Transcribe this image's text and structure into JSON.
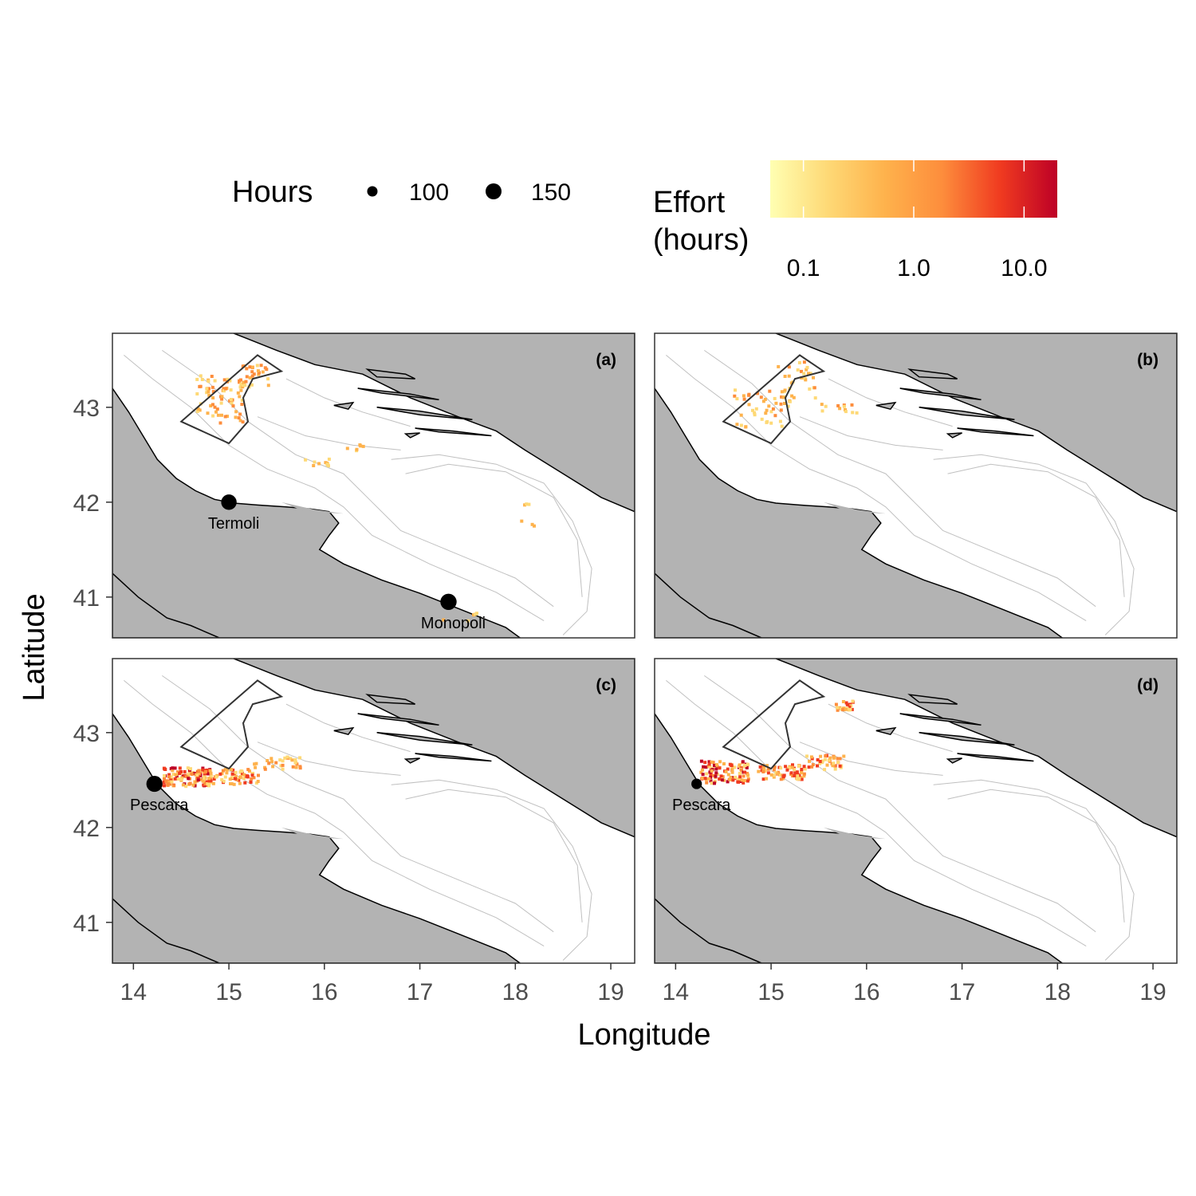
{
  "figure": {
    "x_axis_label": "Longitude",
    "y_axis_label": "Latitude",
    "x_ticks": [
      14,
      15,
      16,
      17,
      18,
      19
    ],
    "y_ticks": [
      41,
      42,
      43
    ],
    "xlim": [
      13.78,
      19.25
    ],
    "ylim": [
      40.57,
      43.78
    ]
  },
  "legend": {
    "hours": {
      "title": "Hours",
      "entries": [
        {
          "label": "100",
          "value": 100
        },
        {
          "label": "150",
          "value": 150
        }
      ]
    },
    "effort": {
      "title_line1": "Effort",
      "title_line2": "(hours)",
      "scale": "log10",
      "tick_labels": [
        "0.1",
        "1.0",
        "10.0"
      ],
      "tick_values": [
        0.1,
        1.0,
        10.0
      ],
      "range": [
        0.05,
        20
      ],
      "colors": [
        "#ffffb2",
        "#fed976",
        "#feb24c",
        "#fd8d3c",
        "#f03b20",
        "#bd0026"
      ]
    }
  },
  "colors": {
    "land": "#b3b3b3",
    "coast": "#000000",
    "bathymetry": "#c0c0c0",
    "closure_area": "#333333"
  },
  "panels": [
    {
      "tag": "(a)",
      "ports": [
        {
          "name": "Termoli",
          "lon": 15.0,
          "lat": 42.0,
          "hours": 130
        },
        {
          "name": "Monopoli",
          "lon": 17.3,
          "lat": 40.95,
          "hours": 145
        }
      ]
    },
    {
      "tag": "(b)",
      "ports": []
    },
    {
      "tag": "(c)",
      "ports": [
        {
          "name": "Pescara",
          "lon": 14.22,
          "lat": 42.46,
          "hours": 140
        }
      ]
    },
    {
      "tag": "(d)",
      "ports": [
        {
          "name": "Pescara",
          "lon": 14.22,
          "lat": 42.46,
          "hours": 60
        }
      ]
    }
  ]
}
